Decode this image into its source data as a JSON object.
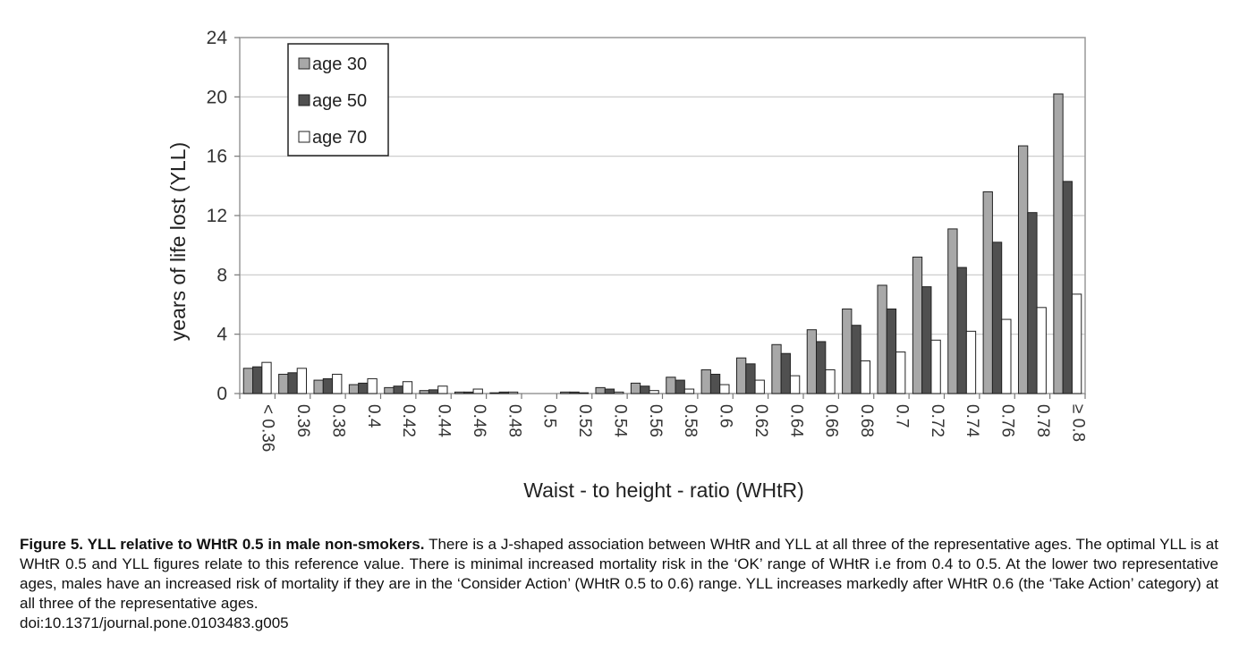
{
  "chart_data": {
    "type": "bar",
    "xlabel": "Waist - to height - ratio (WHtR)",
    "ylabel": "years of life lost (YLL)",
    "ylim": [
      0,
      24
    ],
    "yticks": [
      "0",
      "4",
      "8",
      "12",
      "16",
      "20",
      "24"
    ],
    "grid": true,
    "legend_position": "top-left",
    "categories": [
      "< 0.36",
      "0.36",
      "0.38",
      "0.4",
      "0.42",
      "0.44",
      "0.46",
      "0.48",
      "0.5",
      "0.52",
      "0.54",
      "0.56",
      "0.58",
      "0.6",
      "0.62",
      "0.64",
      "0.66",
      "0.68",
      "0.7",
      "0.72",
      "0.74",
      "0.76",
      "0.78",
      "≥ 0.8"
    ],
    "series": [
      {
        "name": "age 30",
        "color": "#a8a8a8",
        "values": [
          1.7,
          1.3,
          0.9,
          0.6,
          0.4,
          0.2,
          0.1,
          0.05,
          0,
          0.1,
          0.4,
          0.7,
          1.1,
          1.6,
          2.4,
          3.3,
          4.3,
          5.7,
          7.3,
          9.2,
          11.1,
          13.6,
          16.7,
          20.2
        ]
      },
      {
        "name": "age 50",
        "color": "#505050",
        "values": [
          1.8,
          1.4,
          1.0,
          0.7,
          0.5,
          0.25,
          0.1,
          0.1,
          0,
          0.1,
          0.3,
          0.5,
          0.9,
          1.3,
          2.0,
          2.7,
          3.5,
          4.6,
          5.7,
          7.2,
          8.5,
          10.2,
          12.2,
          14.3
        ]
      },
      {
        "name": "age 70",
        "color": "#ffffff",
        "values": [
          2.1,
          1.7,
          1.3,
          1.0,
          0.8,
          0.5,
          0.3,
          0.1,
          0,
          0.05,
          0.1,
          0.2,
          0.3,
          0.6,
          0.9,
          1.2,
          1.6,
          2.2,
          2.8,
          3.6,
          4.2,
          5.0,
          5.8,
          6.7
        ]
      }
    ]
  },
  "caption": {
    "bold": "Figure 5. YLL relative to WHtR 0.5 in male non-smokers.",
    "text": " There is a J-shaped association between WHtR and YLL at all three of the representative ages. The optimal YLL is at WHtR 0.5 and YLL figures relate to this reference value. There is minimal increased mortality risk in the ‘OK’ range of WHtR i.e from 0.4 to 0.5. At the lower two representative ages, males have an increased risk of mortality if they are in the ‘Consider Action’ (WHtR 0.5 to 0.6) range. YLL increases markedly after WHtR 0.6 (the ‘Take Action’ category) at all three of the representative ages.",
    "doi": "doi:10.1371/journal.pone.0103483.g005"
  }
}
